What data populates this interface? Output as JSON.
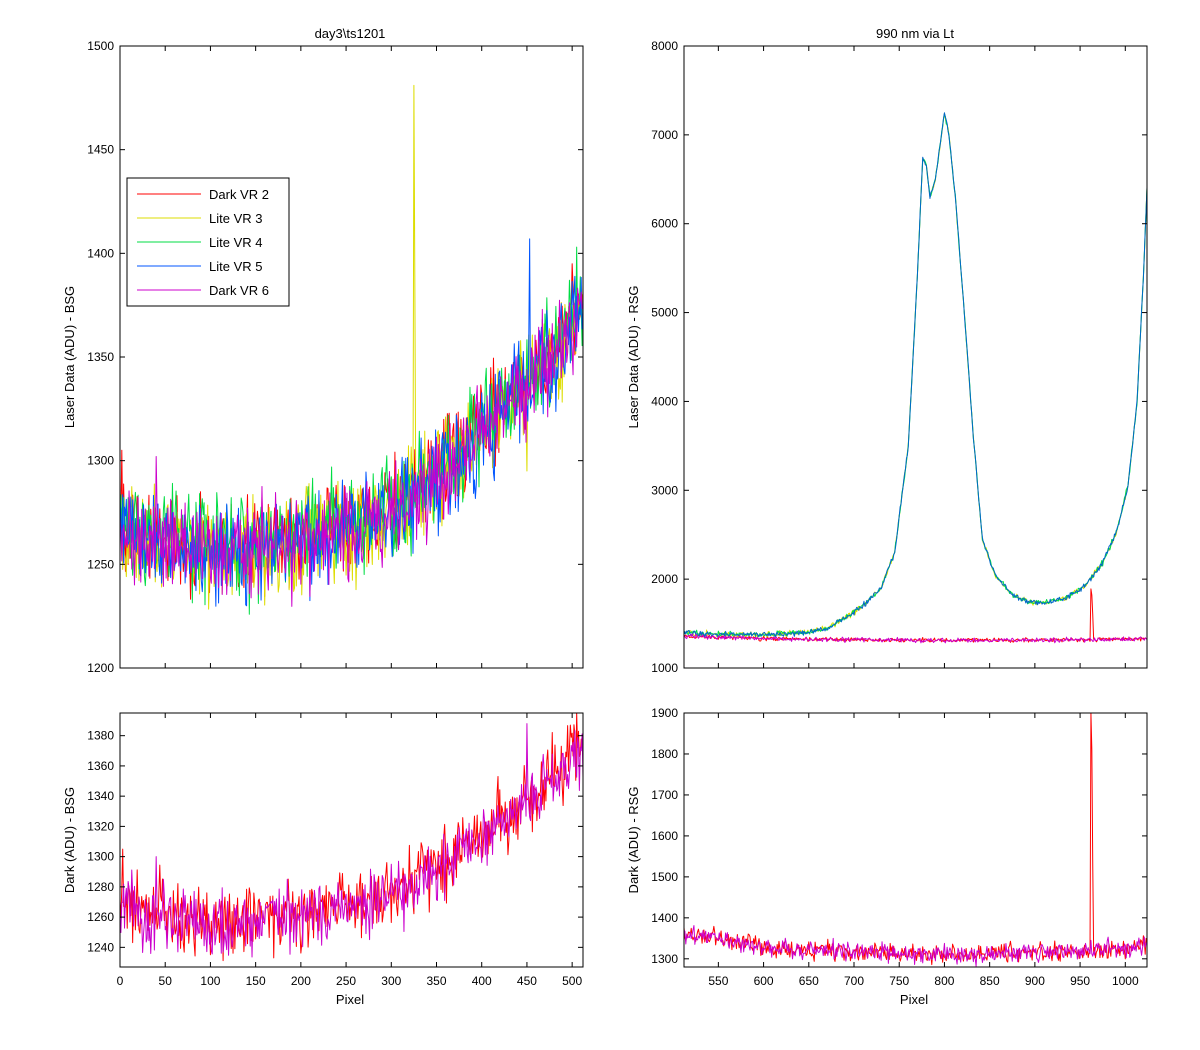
{
  "figure": {
    "background": "#ffffff"
  },
  "chart_data": [
    {
      "id": "tl",
      "type": "line",
      "title": "day3\\ts1201",
      "xlabel": "",
      "ylabel": "Laser Data (ADU) - BSG",
      "xlim": [
        0,
        512
      ],
      "ylim": [
        1200,
        1500
      ],
      "xticks": [
        0,
        50,
        100,
        150,
        200,
        250,
        300,
        350,
        400,
        450,
        500
      ],
      "xtick_labels": false,
      "yticks": [
        1200,
        1250,
        1300,
        1350,
        1400,
        1450,
        1500
      ],
      "legend": {
        "placement": "upper-left"
      },
      "series": [
        {
          "name": "Dark VR 2",
          "color": "#ff0000",
          "shape": "bsg",
          "noise": 11,
          "offset": 2,
          "spikes": [
            [
              2,
              1305
            ],
            [
              500,
              1395
            ]
          ]
        },
        {
          "name": "Lite VR 3",
          "color": "#dddd00",
          "shape": "bsg",
          "noise": 12,
          "offset": 0,
          "spikes": [
            [
              325,
              1481
            ],
            [
              326,
              1390
            ],
            [
              450,
              1295
            ]
          ]
        },
        {
          "name": "Lite VR 4",
          "color": "#00dd44",
          "shape": "bsg",
          "noise": 12,
          "offset": 3,
          "spikes": [
            [
              505,
              1403
            ],
            [
              420,
              1320
            ]
          ]
        },
        {
          "name": "Lite VR 5",
          "color": "#0055ff",
          "shape": "bsg",
          "noise": 12,
          "offset": 0,
          "spikes": [
            [
              453,
              1407
            ],
            [
              140,
              1230
            ]
          ]
        },
        {
          "name": "Dark VR 6",
          "color": "#cc00cc",
          "shape": "bsg",
          "noise": 11,
          "offset": -1,
          "spikes": [
            [
              40,
              1302
            ]
          ]
        }
      ]
    },
    {
      "id": "tr",
      "type": "line",
      "title": "990 nm via Lt",
      "xlabel": "",
      "ylabel": "Laser Data (ADU) - RSG",
      "xlim": [
        512,
        1024
      ],
      "ylim": [
        1000,
        8000
      ],
      "xticks": [
        550,
        600,
        650,
        700,
        750,
        800,
        850,
        900,
        950,
        1000
      ],
      "xtick_labels": false,
      "yticks": [
        1000,
        2000,
        3000,
        4000,
        5000,
        6000,
        7000,
        8000
      ],
      "series": [
        {
          "name": "Dark VR 2",
          "color": "#ff0000",
          "shape": "rsg-dark",
          "noise": 12,
          "spikes": [
            [
              962,
              1890
            ],
            [
              963,
              1820
            ],
            [
              964,
              1600
            ]
          ]
        },
        {
          "name": "Lite VR 3",
          "color": "#dddd00",
          "shape": "rsg-lite",
          "noise": 15,
          "spikes": []
        },
        {
          "name": "Lite VR 4",
          "color": "#00dd44",
          "shape": "rsg-lite",
          "noise": 15,
          "spikes": []
        },
        {
          "name": "Lite VR 5",
          "color": "#0066cc",
          "shape": "rsg-lite",
          "noise": 15,
          "spikes": []
        },
        {
          "name": "Dark VR 6",
          "color": "#cc00cc",
          "shape": "rsg-dark",
          "noise": 12,
          "spikes": []
        }
      ]
    },
    {
      "id": "bl",
      "type": "line",
      "title": "",
      "xlabel": "Pixel",
      "ylabel": "Dark (ADU) - BSG",
      "xlim": [
        0,
        512
      ],
      "ylim": [
        1227,
        1395
      ],
      "xticks": [
        0,
        50,
        100,
        150,
        200,
        250,
        300,
        350,
        400,
        450,
        500
      ],
      "xtick_labels": true,
      "yticks": [
        1240,
        1260,
        1280,
        1300,
        1320,
        1340,
        1360,
        1380
      ],
      "series": [
        {
          "name": "Dark VR 2",
          "color": "#ff0000",
          "shape": "bsg",
          "noise": 11,
          "offset": 2,
          "spikes": [
            [
              3,
              1305
            ],
            [
              505,
              1395
            ]
          ]
        },
        {
          "name": "Dark VR 6",
          "color": "#cc00cc",
          "shape": "bsg",
          "noise": 11,
          "offset": -1,
          "spikes": [
            [
              40,
              1300
            ],
            [
              185,
              1285
            ],
            [
              450,
              1388
            ]
          ]
        }
      ]
    },
    {
      "id": "br",
      "type": "line",
      "title": "",
      "xlabel": "Pixel",
      "ylabel": "Dark (ADU) - RSG",
      "xlim": [
        512,
        1024
      ],
      "ylim": [
        1280,
        1900
      ],
      "xticks": [
        550,
        600,
        650,
        700,
        750,
        800,
        850,
        900,
        950,
        1000
      ],
      "xtick_labels": true,
      "yticks": [
        1300,
        1400,
        1500,
        1600,
        1700,
        1800,
        1900
      ],
      "series": [
        {
          "name": "Dark VR 2",
          "color": "#ff0000",
          "shape": "rsg-dark",
          "noise": 11,
          "spikes": [
            [
              962,
              1900
            ],
            [
              963,
              1810
            ],
            [
              964,
              1530
            ]
          ]
        },
        {
          "name": "Dark VR 6",
          "color": "#cc00cc",
          "shape": "rsg-dark",
          "noise": 11,
          "spikes": []
        }
      ]
    }
  ]
}
